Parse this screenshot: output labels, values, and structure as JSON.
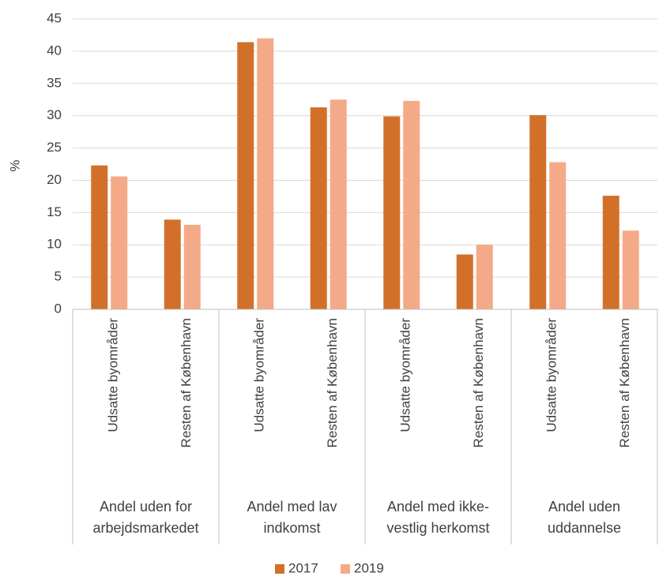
{
  "chart_data": {
    "type": "bar",
    "ylabel": "%",
    "ylim": [
      0,
      45
    ],
    "yticks": [
      0,
      5,
      10,
      15,
      20,
      25,
      30,
      35,
      40,
      45
    ],
    "grid": true,
    "legend_position": "bottom",
    "groups": [
      {
        "label": "Andel uden for arbejdsmarkedet",
        "label_lines": [
          "Andel uden for",
          "arbejdsmarkedet"
        ],
        "categories": [
          "Udsatte byområder",
          "Resten af København"
        ]
      },
      {
        "label": "Andel med lav indkomst",
        "label_lines": [
          "Andel med lav",
          "indkomst"
        ],
        "categories": [
          "Udsatte byområder",
          "Resten af København"
        ]
      },
      {
        "label": "Andel med ikke-vestlig herkomst",
        "label_lines": [
          "Andel med ikke-",
          "vestlig herkomst"
        ],
        "categories": [
          "Udsatte byområder",
          "Resten af København"
        ]
      },
      {
        "label": "Andel uden uddannelse",
        "label_lines": [
          "Andel uden",
          "uddannelse"
        ],
        "categories": [
          "Udsatte byområder",
          "Resten af København"
        ]
      }
    ],
    "series": [
      {
        "name": "2017",
        "color": "#D2702A",
        "values": [
          22.3,
          13.9,
          41.4,
          31.3,
          29.9,
          8.5,
          30.1,
          17.6
        ]
      },
      {
        "name": "2019",
        "color": "#F4AA88",
        "values": [
          20.6,
          13.1,
          42.0,
          32.5,
          32.3,
          10.0,
          22.8,
          12.2
        ]
      }
    ]
  }
}
